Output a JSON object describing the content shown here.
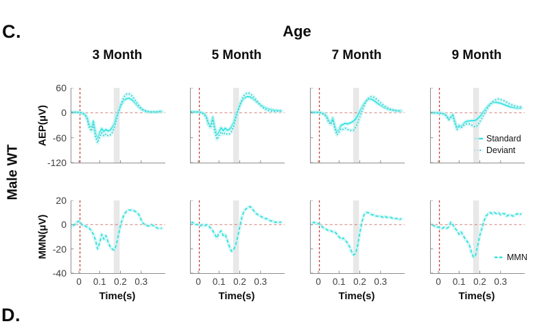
{
  "figure": {
    "panel_label": "C.",
    "next_panel_label": "D.",
    "title": "Age",
    "group_label": "Male WT",
    "column_headers": [
      "3 Month",
      "5 Month",
      "7 Month",
      "9 Month"
    ]
  },
  "legend": {
    "standard": "Standard",
    "deviant": "Deviant",
    "mmn": "MMN"
  },
  "colors": {
    "standard_line": "#2ee3e3",
    "deviant_line": "#1cc9cd",
    "mmn_line": "#32e0dc",
    "sem_halo": "#bdf3f1",
    "stimulus_line": "#c4392c",
    "zero_line": "#c4544a",
    "shaded_band": "#e2e2e2",
    "axis": "#8c8c8c",
    "tick_text": "#3d3d3d",
    "background": "#ffffff"
  },
  "chart_data": {
    "type": "line",
    "x_label": "Time(s)",
    "x_ticks": [
      "0",
      "0.1",
      "0.2",
      "0.3"
    ],
    "x_tick_values": [
      0,
      0.1,
      0.2,
      0.3
    ],
    "xlim": [
      -0.04,
      0.41
    ],
    "t_start": -0.05,
    "t_step": 0.01,
    "stimulus_line_t": 0.005,
    "shaded_window": [
      0.168,
      0.196
    ],
    "grid": false,
    "rows": [
      {
        "key": "aep",
        "y_label": "AEP(μV)",
        "ylim": [
          -120,
          60
        ],
        "yticks": [
          60,
          0,
          -60,
          -120
        ],
        "series_keys": [
          "standard",
          "deviant"
        ],
        "legend_position": "bottom-right-of-last-column",
        "columns": [
          {
            "age": "3 Month",
            "standard": [
              2,
              2,
              1,
              2,
              1,
              1,
              0,
              -1,
              -4,
              -12,
              -30,
              -36,
              -20,
              -48,
              -62,
              -48,
              -38,
              -45,
              -40,
              -44,
              -42,
              -36,
              -26,
              -10,
              3,
              15,
              25,
              31,
              34,
              35,
              33,
              29,
              24,
              18,
              13,
              9,
              6,
              4,
              3,
              2,
              2,
              2,
              2,
              2,
              3,
              3
            ],
            "deviant": [
              2,
              2,
              1,
              1,
              1,
              1,
              0,
              -2,
              -6,
              -16,
              -36,
              -44,
              -28,
              -58,
              -72,
              -58,
              -48,
              -56,
              -51,
              -55,
              -54,
              -48,
              -36,
              -18,
              0,
              16,
              30,
              40,
              45,
              46,
              43,
              38,
              31,
              24,
              17,
              11,
              7,
              5,
              3,
              2,
              2,
              2,
              2,
              2,
              3,
              3
            ]
          },
          {
            "age": "5 Month",
            "standard": [
              3,
              3,
              2,
              2,
              2,
              2,
              1,
              0,
              -3,
              -10,
              -26,
              -30,
              -10,
              -36,
              -54,
              -46,
              -36,
              -43,
              -37,
              -42,
              -40,
              -34,
              -23,
              -8,
              5,
              17,
              27,
              34,
              38,
              39,
              38,
              35,
              31,
              27,
              23,
              19,
              16,
              13,
              11,
              9,
              8,
              7,
              6,
              6,
              5,
              5
            ],
            "deviant": [
              3,
              2,
              2,
              2,
              2,
              2,
              1,
              -1,
              -5,
              -14,
              -30,
              -36,
              -16,
              -46,
              -64,
              -56,
              -46,
              -52,
              -48,
              -52,
              -51,
              -45,
              -33,
              -15,
              2,
              18,
              32,
              41,
              46,
              48,
              46,
              42,
              36,
              30,
              24,
              18,
              13,
              10,
              7,
              5,
              4,
              4,
              4,
              4,
              4,
              4
            ]
          },
          {
            "age": "7 Month",
            "standard": [
              2,
              2,
              1,
              1,
              1,
              1,
              0,
              -1,
              -3,
              -8,
              -19,
              -24,
              -12,
              -33,
              -46,
              -40,
              -30,
              -28,
              -25,
              -27,
              -25,
              -23,
              -20,
              -15,
              -7,
              3,
              13,
              22,
              28,
              32,
              33,
              32,
              29,
              25,
              21,
              18,
              15,
              12,
              10,
              8,
              7,
              6,
              5,
              4,
              4,
              4
            ],
            "deviant": [
              2,
              2,
              1,
              1,
              1,
              1,
              0,
              -2,
              -5,
              -11,
              -23,
              -28,
              -16,
              -39,
              -53,
              -46,
              -38,
              -40,
              -37,
              -40,
              -41,
              -43,
              -42,
              -35,
              -24,
              -11,
              3,
              16,
              27,
              34,
              38,
              39,
              37,
              33,
              29,
              24,
              20,
              16,
              13,
              10,
              8,
              7,
              6,
              5,
              5,
              5
            ]
          },
          {
            "age": "9 Month",
            "standard": [
              1,
              1,
              0,
              0,
              0,
              -1,
              -1,
              -2,
              -3,
              -7,
              -15,
              -10,
              -4,
              -22,
              -36,
              -30,
              -33,
              -27,
              -22,
              -20,
              -20,
              -19,
              -19,
              -18,
              -14,
              -9,
              -3,
              4,
              11,
              17,
              21,
              24,
              25,
              25,
              24,
              23,
              21,
              19,
              17,
              15,
              14,
              13,
              12,
              11,
              11,
              11
            ],
            "deviant": [
              1,
              1,
              0,
              0,
              0,
              -1,
              -1,
              -2,
              -4,
              -9,
              -17,
              -12,
              -6,
              -25,
              -40,
              -34,
              -36,
              -31,
              -28,
              -26,
              -27,
              -29,
              -33,
              -34,
              -30,
              -22,
              -13,
              -4,
              5,
              13,
              20,
              26,
              30,
              32,
              33,
              32,
              30,
              28,
              25,
              22,
              20,
              18,
              16,
              15,
              14,
              14
            ]
          }
        ]
      },
      {
        "key": "mmn",
        "y_label": "MMN(μV)",
        "ylim": [
          -40,
          20
        ],
        "yticks": [
          20,
          0,
          -20,
          -40
        ],
        "series_keys": [
          "mmn"
        ],
        "legend_position": "bottom-right-of-last-column",
        "columns": [
          {
            "age": "3 Month",
            "mmn": [
              -3,
              -2,
              -1,
              0,
              2,
              3,
              1,
              -1,
              -1,
              -2,
              -3,
              -5,
              -8,
              -13,
              -20,
              -15,
              -8,
              -12,
              -9,
              -14,
              -18,
              -20,
              -21,
              -17,
              -9,
              -1,
              5,
              9,
              11,
              12,
              12,
              12,
              11,
              10,
              8,
              4,
              1,
              0,
              -1,
              -1,
              0,
              -1,
              -2,
              -3,
              -3,
              -3
            ]
          },
          {
            "age": "5 Month",
            "mmn": [
              -2,
              0,
              2,
              1,
              0,
              0,
              -1,
              0,
              -1,
              0,
              -1,
              -3,
              -5,
              -8,
              -11,
              -7,
              -5,
              -9,
              -8,
              -13,
              -18,
              -22,
              -21,
              -17,
              -10,
              -2,
              6,
              11,
              13,
              14,
              15,
              13,
              11,
              9,
              8,
              7,
              6,
              5,
              5,
              4,
              3,
              3,
              2,
              2,
              2,
              2
            ]
          },
          {
            "age": "7 Month",
            "mmn": [
              0,
              0,
              1,
              2,
              1,
              1,
              0,
              -2,
              -3,
              -4,
              -5,
              -5,
              -6,
              -6,
              -8,
              -10,
              -12,
              -11,
              -13,
              -15,
              -18,
              -22,
              -25,
              -24,
              -17,
              -7,
              2,
              8,
              10,
              10,
              9,
              8,
              8,
              7,
              7,
              7,
              6,
              7,
              6,
              6,
              6,
              5,
              5,
              5,
              4,
              5
            ]
          },
          {
            "age": "9 Month",
            "mmn": [
              2,
              1,
              0,
              -1,
              -2,
              -2,
              -3,
              -3,
              -2,
              -3,
              -2,
              2,
              0,
              -3,
              -5,
              -8,
              -6,
              -9,
              -12,
              -14,
              -17,
              -23,
              -27,
              -25,
              -17,
              -9,
              -3,
              3,
              7,
              9,
              10,
              9,
              10,
              9,
              10,
              8,
              9,
              9,
              7,
              8,
              8,
              7,
              8,
              9,
              8,
              9
            ]
          }
        ]
      }
    ]
  }
}
